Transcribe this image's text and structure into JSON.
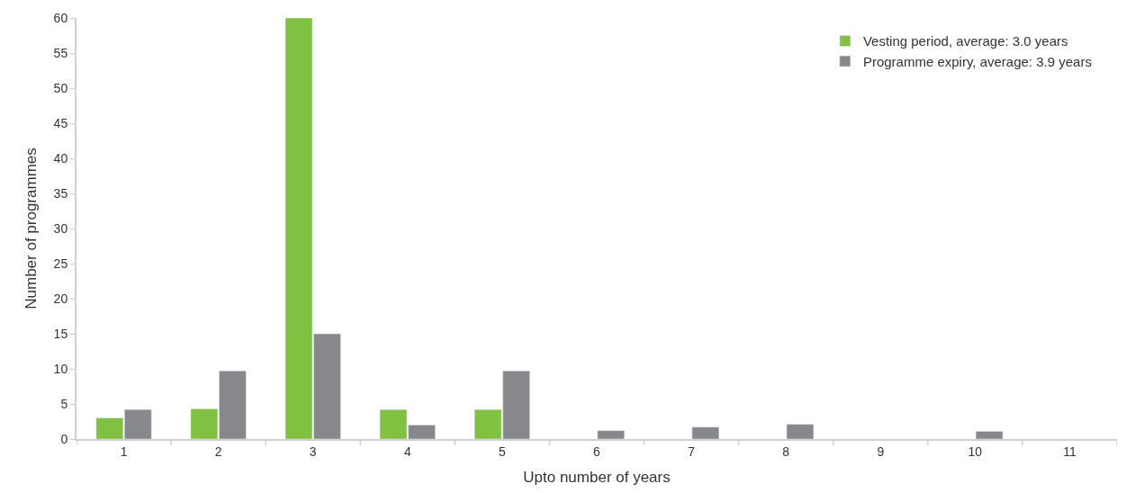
{
  "chart_data": {
    "type": "bar",
    "xlabel": "Upto number of years",
    "ylabel": "Number of programmes",
    "categories": [
      "1",
      "2",
      "3",
      "4",
      "5",
      "6",
      "7",
      "8",
      "9",
      "10",
      "11"
    ],
    "series": [
      {
        "name": "Vesting period, average: 3.0 years",
        "color": "#80c141",
        "values": [
          3,
          4.3,
          60,
          4.2,
          4.2,
          null,
          null,
          null,
          null,
          null,
          null
        ]
      },
      {
        "name": "Programme expiry, average: 3.9 years",
        "color": "#86888c",
        "values": [
          4.2,
          9.7,
          15,
          2,
          9.7,
          1.2,
          1.7,
          2.1,
          null,
          1.1,
          null
        ]
      }
    ],
    "ylim": [
      0,
      60
    ],
    "yticks": [
      0,
      5,
      10,
      15,
      20,
      25,
      30,
      35,
      40,
      45,
      50,
      55,
      60
    ],
    "legend": "top right"
  }
}
